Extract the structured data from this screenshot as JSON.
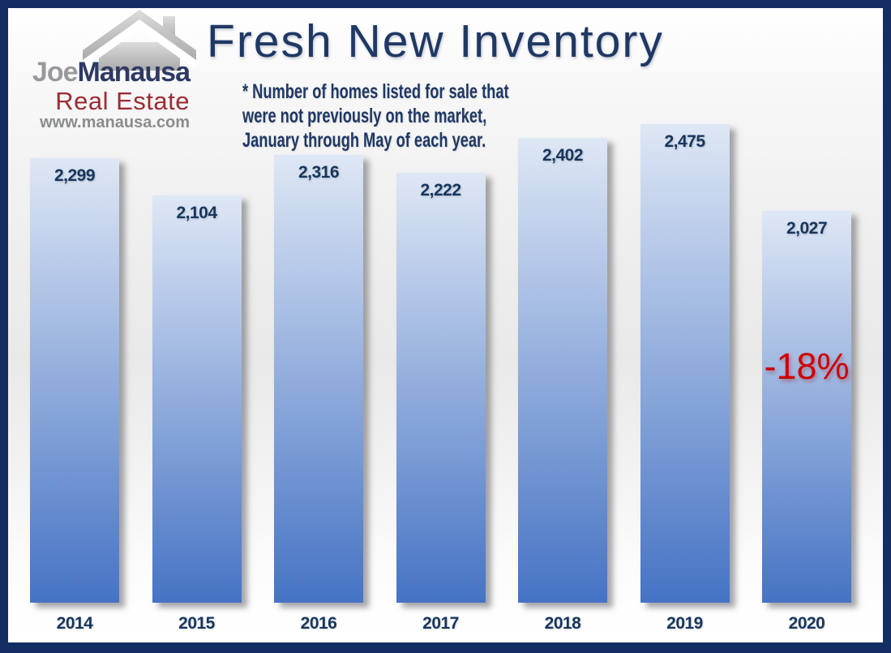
{
  "brand": {
    "joe": "Joe",
    "manausa": "Manausa",
    "real_estate": "Real Estate",
    "website": "www.manausa.com"
  },
  "header": {
    "title": "Fresh New Inventory",
    "note_lines": [
      "* Number of homes listed for sale that",
      "were not previously on the market,",
      "January through May of each year."
    ]
  },
  "chart_data": {
    "type": "bar",
    "title": "Fresh New Inventory",
    "xlabel": "",
    "ylabel": "",
    "categories": [
      "2014",
      "2015",
      "2016",
      "2017",
      "2018",
      "2019",
      "2020"
    ],
    "values": [
      2299,
      2104,
      2316,
      2222,
      2402,
      2475,
      2027
    ],
    "value_labels": [
      "2,299",
      "2,104",
      "2,316",
      "2,222",
      "2,402",
      "2,475",
      "2,027"
    ],
    "annotation": {
      "text": "-18%",
      "category": "2020",
      "color": "#CE0000"
    },
    "ylim": [
      0,
      2475
    ],
    "grid": false,
    "legend": null,
    "bar_gradient_top": "#DEE7F5",
    "bar_gradient_bottom": "#4573C4",
    "label_color": "#17365D"
  },
  "colors": {
    "frame_navy": "#132E63",
    "text_navy": "#1F3864",
    "accent_red": "#CE0000",
    "logo_red": "#9B2C33",
    "logo_gray": "#97999C"
  }
}
